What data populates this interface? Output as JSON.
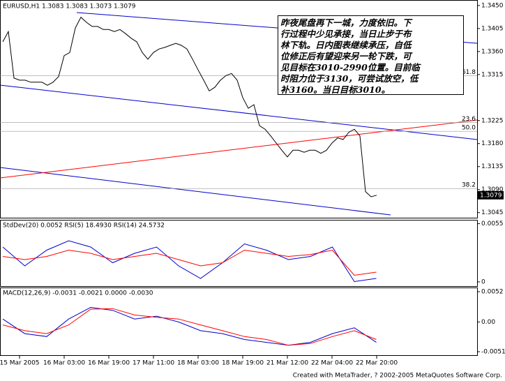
{
  "chart_data": {
    "type": "line",
    "title": "EURUSD,H1  1.3083 1.3083 1.3073 1.3079",
    "current_price": "1.3079",
    "series": [
      {
        "name": "EURUSD",
        "color": "#000000",
        "values": [
          1.3379,
          1.3399,
          1.3308,
          1.3304,
          1.3304,
          1.33,
          1.33,
          1.33,
          1.3294,
          1.33,
          1.3311,
          1.3352,
          1.3358,
          1.3406,
          1.3427,
          1.3417,
          1.3409,
          1.3409,
          1.3403,
          1.3403,
          1.3399,
          1.3403,
          1.3395,
          1.3386,
          1.3379,
          1.3358,
          1.3345,
          1.3358,
          1.3365,
          1.3368,
          1.3372,
          1.3376,
          1.3372,
          1.3365,
          1.3345,
          1.3324,
          1.3304,
          1.3283,
          1.329,
          1.3304,
          1.3313,
          1.3317,
          1.3304,
          1.327,
          1.3249,
          1.3256,
          1.3215,
          1.3208,
          1.3195,
          1.3181,
          1.3167,
          1.3154,
          1.3167,
          1.3167,
          1.3163,
          1.3167,
          1.3167,
          1.3161,
          1.3167,
          1.3181,
          1.3191,
          1.3188,
          1.3202,
          1.3208,
          1.3195,
          1.3086,
          1.3076,
          1.3079
        ]
      }
    ],
    "ylim": [
      1.3035,
      1.3458
    ],
    "yticks": [
      {
        "value": 1.345,
        "label": "1.3450"
      },
      1.3405,
      {
        "value": 1.336,
        "label": "1.3360"
      },
      1.3315,
      1.3225,
      {
        "value": 1.318,
        "label": "1.3180"
      },
      1.3135,
      {
        "value": 1.309,
        "label": "1.3090"
      },
      1.3045
    ],
    "fib_levels": [
      {
        "label": "61.8",
        "value": 1.3313
      },
      {
        "label": "23.6",
        "value": 1.3221
      },
      {
        "label": "50.0",
        "value": 1.3204
      },
      {
        "label": "38.2",
        "value": 1.3092
      }
    ],
    "xticks": [
      "15 Mar 2005",
      "16 Mar 03:00",
      "16 Mar 19:00",
      "17 Mar 11:00",
      "18 Mar 03:00",
      "18 Mar 19:00",
      "21 Mar 12:00",
      "22 Mar 04:00",
      "22 Mar 20:00"
    ],
    "annotation": [
      "昨夜尾盘再下一城，力度依旧。下",
      "行过程中少见承接，当日止步于布",
      "林下轨。日内图表继续承压，自低",
      "位修正后有望迎来另一轮下跌，可",
      "见目标在3010-2990位置。目前临",
      "时阻力位于3130，可尝试放空，低",
      "补3160。当日目标3010。"
    ],
    "indicator1": {
      "title": "StdDev(20) 0.0052  RSI(5) 18.4930  RSI(14) 24.5732",
      "ylim": [
        -0.0004,
        0.0058
      ],
      "yticks": [
        0.0055,
        0
      ],
      "rsi_lim": [
        0,
        100
      ],
      "series": [
        {
          "name": "RSI(5)",
          "color": "#0000cc",
          "values": [
            60,
            30,
            55,
            70,
            60,
            35,
            50,
            60,
            30,
            10,
            35,
            65,
            55,
            40,
            45,
            60,
            5,
            10
          ]
        },
        {
          "name": "RSI(14)",
          "color": "#ff0000",
          "values": [
            45,
            40,
            45,
            55,
            50,
            40,
            45,
            50,
            40,
            30,
            35,
            55,
            50,
            45,
            48,
            55,
            15,
            20
          ]
        }
      ]
    },
    "indicator2": {
      "title": "MACD(12,26,9) -0.0031 -0.0021 0.0000 -0.0030",
      "ylim": [
        -0.0057,
        0.0058
      ],
      "yticks": [
        0.0052,
        {
          "value": 0,
          "label": "0.00"
        },
        -0.0051
      ],
      "series": [
        {
          "name": "MACD",
          "color": "#0000cc",
          "values": [
            0.0005,
            -0.002,
            -0.0025,
            0.0005,
            0.0025,
            0.002,
            0.0005,
            0.001,
            0,
            -0.0015,
            -0.002,
            -0.003,
            -0.0035,
            -0.004,
            -0.0035,
            -0.002,
            -0.001,
            -0.0035
          ]
        },
        {
          "name": "Signal",
          "color": "#ff0000",
          "values": [
            -0.0005,
            -0.0015,
            -0.002,
            -0.0005,
            0.0022,
            0.0023,
            0.0012,
            0.0008,
            0.0005,
            -0.0005,
            -0.0015,
            -0.0025,
            -0.003,
            -0.004,
            -0.0037,
            -0.0025,
            -0.0015,
            -0.003
          ]
        }
      ]
    },
    "footer": "Created with MetaTrader, ? 2002-2005 MetaQuotes Software Corp."
  }
}
